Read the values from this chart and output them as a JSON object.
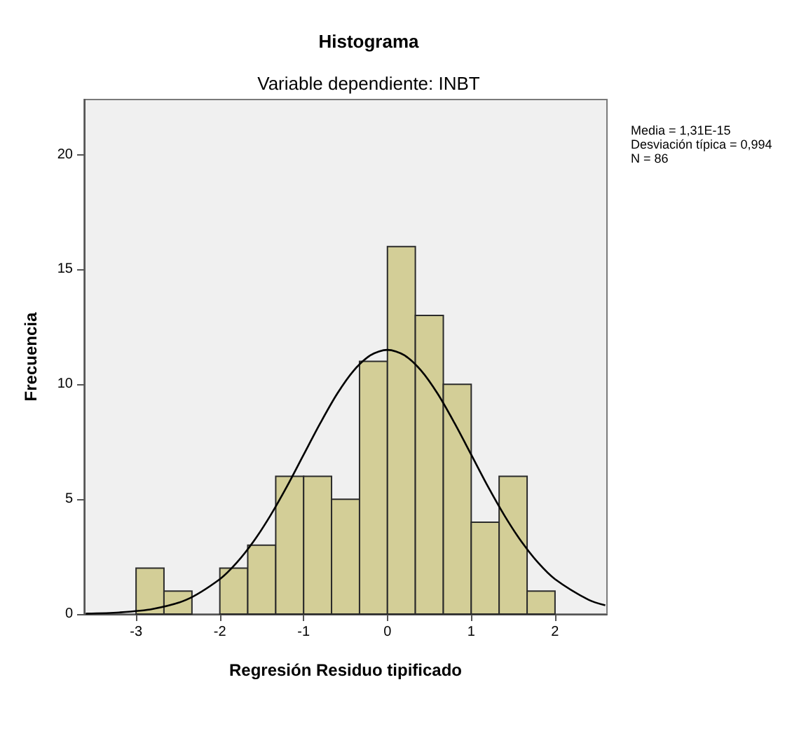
{
  "chart_data": {
    "type": "histogram",
    "title": "Histograma",
    "subtitle": "Variable dependiente: INBT",
    "xlabel": "Regresión Residuo tipificado",
    "ylabel": "Frecuencia",
    "bins": [
      -3,
      -2.667,
      -2.333,
      -2,
      -1.667,
      -1.333,
      -1,
      -0.667,
      -0.333,
      0,
      0.333,
      0.667,
      1,
      1.333,
      1.667,
      2
    ],
    "values": [
      2,
      1,
      0,
      2,
      3,
      6,
      6,
      5,
      11,
      16,
      13,
      10,
      4,
      6,
      1
    ],
    "color": "#d3ce97",
    "series": [
      {
        "type": "line",
        "color": "#000000",
        "x": [
          -3.6,
          -3.2,
          -2.8,
          -2.4,
          -2.0,
          -1.8,
          -1.6,
          -1.4,
          -1.2,
          -1.0,
          -0.8,
          -0.6,
          -0.4,
          -0.2,
          0,
          0.2,
          0.4,
          0.6,
          0.8,
          1.0,
          1.2,
          1.4,
          1.6,
          1.8,
          2.0,
          2.4,
          2.6
        ],
        "values": [
          0.02,
          0.07,
          0.22,
          0.62,
          1.52,
          2.23,
          3.15,
          4.27,
          5.55,
          6.94,
          8.32,
          9.59,
          10.61,
          11.27,
          11.5,
          11.27,
          10.61,
          9.59,
          8.32,
          6.94,
          5.55,
          4.27,
          3.15,
          2.23,
          1.52,
          0.62,
          0.38
        ]
      }
    ],
    "marker": "none",
    "xlim": [
      -3.62,
      2.62
    ],
    "xticks": [
      -3,
      -2,
      -1,
      0,
      1,
      2
    ],
    "ylim": [
      0,
      22.4
    ],
    "yticks": [
      0,
      5,
      10,
      15,
      20
    ],
    "annotations": [
      "Media = 1,31E-15",
      "Desviación típica = 0,994",
      "N = 86"
    ]
  }
}
